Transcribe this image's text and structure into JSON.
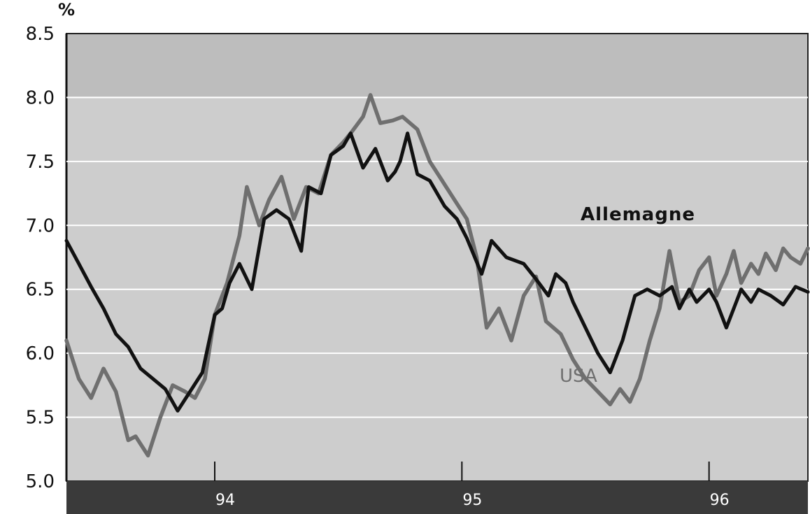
{
  "chart_data": {
    "type": "line",
    "unit_label": "%",
    "ylim": [
      5.0,
      8.5
    ],
    "y_ticks": [
      "8.5",
      "8.0",
      "7.5",
      "7.0",
      "6.5",
      "6.0",
      "5.5",
      "5.0"
    ],
    "x_ticks": [
      "94",
      "95",
      "96"
    ],
    "xlim_year": [
      1993.4,
      1996.4
    ],
    "grid": true,
    "series": [
      {
        "name": "Allemagne",
        "color": "#111111",
        "x": [
          1993.4,
          1993.45,
          1993.5,
          1993.55,
          1993.6,
          1993.65,
          1993.7,
          1993.75,
          1993.8,
          1993.85,
          1993.9,
          1993.95,
          1994.0,
          1994.03,
          1994.06,
          1994.1,
          1994.15,
          1994.2,
          1994.25,
          1994.3,
          1994.35,
          1994.38,
          1994.43,
          1994.47,
          1994.52,
          1994.55,
          1994.6,
          1994.65,
          1994.7,
          1994.73,
          1994.75,
          1994.78,
          1994.82,
          1994.87,
          1994.93,
          1994.98,
          1995.02,
          1995.08,
          1995.12,
          1995.18,
          1995.25,
          1995.3,
          1995.35,
          1995.38,
          1995.42,
          1995.45,
          1995.5,
          1995.55,
          1995.6,
          1995.65,
          1995.7,
          1995.75,
          1995.8,
          1995.85,
          1995.88,
          1995.92,
          1995.95,
          1996.0,
          1996.03,
          1996.07,
          1996.1,
          1996.13,
          1996.17,
          1996.2,
          1996.25,
          1996.3,
          1996.35,
          1996.4
        ],
        "y": [
          6.88,
          6.7,
          6.52,
          6.35,
          6.15,
          6.05,
          5.88,
          5.8,
          5.72,
          5.55,
          5.7,
          5.85,
          6.3,
          6.35,
          6.55,
          6.7,
          6.5,
          7.05,
          7.12,
          7.05,
          6.8,
          7.3,
          7.25,
          7.55,
          7.62,
          7.72,
          7.45,
          7.6,
          7.35,
          7.42,
          7.5,
          7.72,
          7.4,
          7.35,
          7.15,
          7.05,
          6.9,
          6.62,
          6.88,
          6.75,
          6.7,
          6.58,
          6.45,
          6.62,
          6.55,
          6.4,
          6.2,
          6.0,
          5.85,
          6.1,
          6.45,
          6.5,
          6.45,
          6.52,
          6.35,
          6.5,
          6.4,
          6.5,
          6.4,
          6.2,
          6.35,
          6.5,
          6.4,
          6.5,
          6.45,
          6.38,
          6.52,
          6.48
        ]
      },
      {
        "name": "USA",
        "color": "#6f6f6f",
        "x": [
          1993.4,
          1993.45,
          1993.5,
          1993.55,
          1993.6,
          1993.65,
          1993.68,
          1993.73,
          1993.78,
          1993.83,
          1993.88,
          1993.92,
          1993.96,
          1994.0,
          1994.05,
          1994.1,
          1994.13,
          1994.18,
          1994.22,
          1994.27,
          1994.32,
          1994.37,
          1994.42,
          1994.47,
          1994.52,
          1994.55,
          1994.6,
          1994.63,
          1994.67,
          1994.72,
          1994.76,
          1994.82,
          1994.87,
          1994.92,
          1994.97,
          1995.02,
          1995.06,
          1995.1,
          1995.15,
          1995.2,
          1995.25,
          1995.3,
          1995.34,
          1995.4,
          1995.45,
          1995.5,
          1995.55,
          1995.6,
          1995.64,
          1995.68,
          1995.72,
          1995.76,
          1995.8,
          1995.84,
          1995.88,
          1995.92,
          1995.96,
          1996.0,
          1996.03,
          1996.07,
          1996.1,
          1996.13,
          1996.17,
          1996.2,
          1996.23,
          1996.27,
          1996.3,
          1996.33,
          1996.37,
          1996.4
        ],
        "y": [
          6.1,
          5.8,
          5.65,
          5.88,
          5.7,
          5.32,
          5.35,
          5.2,
          5.5,
          5.75,
          5.7,
          5.65,
          5.8,
          6.3,
          6.55,
          6.92,
          7.3,
          7.0,
          7.2,
          7.38,
          7.05,
          7.3,
          7.25,
          7.55,
          7.65,
          7.72,
          7.85,
          8.02,
          7.8,
          7.82,
          7.85,
          7.75,
          7.5,
          7.35,
          7.2,
          7.05,
          6.75,
          6.2,
          6.35,
          6.1,
          6.45,
          6.6,
          6.25,
          6.15,
          5.95,
          5.8,
          5.7,
          5.6,
          5.72,
          5.62,
          5.8,
          6.1,
          6.35,
          6.8,
          6.4,
          6.45,
          6.65,
          6.75,
          6.45,
          6.62,
          6.8,
          6.55,
          6.7,
          6.62,
          6.78,
          6.65,
          6.82,
          6.75,
          6.7,
          6.82
        ]
      }
    ]
  }
}
